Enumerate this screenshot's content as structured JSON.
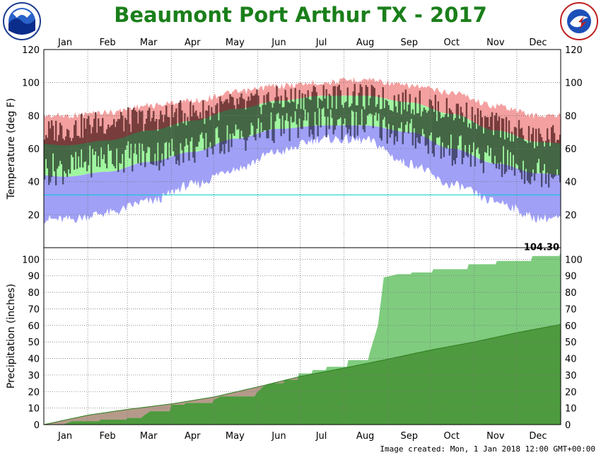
{
  "title": "Beaumont Port Arthur TX - 2017",
  "footer": "Image created: Mon, 1 Jan 2018 12:00 GMT+00:00",
  "logos": {
    "left": "noaa-logo",
    "right": "national-weather-service-logo"
  },
  "colors": {
    "title": "#1a7f1a",
    "record_high": "#f4a0a0",
    "normal_band": "#a0f7a0",
    "record_low": "#a0a0f7",
    "observed": "#446644",
    "observed_above": "#7a3b3b",
    "observed_below": "#4a4a7a",
    "freeze_line": "#00d0d0",
    "precip_observed": "#7fcc7f",
    "precip_normal": "#4e9a3e",
    "precip_below": "#b59a8a"
  },
  "chart_data": [
    {
      "type": "area",
      "name": "temperature",
      "ylabel": "Temperature (deg F)",
      "ylim": [
        0,
        120
      ],
      "yticks": [
        20,
        40,
        60,
        80,
        100,
        120
      ],
      "months": [
        "Jan",
        "Feb",
        "Mar",
        "Apr",
        "May",
        "Jun",
        "Jul",
        "Aug",
        "Sep",
        "Oct",
        "Nov",
        "Dec"
      ],
      "grid": true,
      "freeze_line": 32,
      "normal_high_by_month": [
        62,
        65,
        71,
        77,
        84,
        89,
        92,
        92,
        88,
        81,
        71,
        64
      ],
      "normal_low_by_month": [
        43,
        46,
        52,
        58,
        66,
        72,
        74,
        74,
        70,
        60,
        51,
        45
      ],
      "record_high_by_month": [
        82,
        84,
        88,
        91,
        96,
        100,
        102,
        104,
        100,
        96,
        88,
        82
      ],
      "record_low_by_month": [
        14,
        18,
        25,
        35,
        45,
        55,
        63,
        62,
        48,
        35,
        25,
        15
      ],
      "observed_high_by_month": [
        72,
        76,
        78,
        82,
        86,
        90,
        92,
        91,
        88,
        83,
        74,
        66
      ],
      "observed_low_by_month": [
        48,
        55,
        56,
        60,
        67,
        73,
        75,
        75,
        69,
        59,
        52,
        46
      ]
    },
    {
      "type": "area",
      "name": "precipitation",
      "ylabel": "Precipitation (inches)",
      "ylim": [
        0,
        107
      ],
      "yticks": [
        0,
        10,
        20,
        30,
        40,
        50,
        60,
        70,
        80,
        90,
        100
      ],
      "months": [
        "Jan",
        "Feb",
        "Mar",
        "Apr",
        "May",
        "Jun",
        "Jul",
        "Aug",
        "Sep",
        "Oct",
        "Nov",
        "Dec"
      ],
      "grid": true,
      "total_label": "104.30",
      "observed_cumulative": {
        "day": [
          0,
          15,
          20,
          31,
          40,
          59,
          70,
          75,
          90,
          100,
          120,
          125,
          140,
          150,
          155,
          160,
          170,
          180,
          190,
          200,
          215,
          230,
          236,
          240,
          245,
          250,
          260,
          275,
          300,
          320,
          345,
          365
        ],
        "inches": [
          0,
          0.5,
          2,
          2,
          3,
          4,
          5,
          8,
          12,
          13,
          15,
          17,
          17,
          19,
          23,
          25,
          27,
          31,
          33,
          35,
          39,
          43,
          60,
          89,
          90,
          91,
          92,
          94,
          97,
          99,
          102,
          104.3
        ]
      },
      "normal_cumulative": {
        "day": [
          0,
          31,
          59,
          90,
          120,
          151,
          181,
          212,
          243,
          273,
          304,
          334,
          365
        ],
        "inches": [
          0,
          5.7,
          9.2,
          12.5,
          16.7,
          22.8,
          29.1,
          34.2,
          39.6,
          45.1,
          50.0,
          55.6,
          60.6
        ]
      }
    }
  ]
}
